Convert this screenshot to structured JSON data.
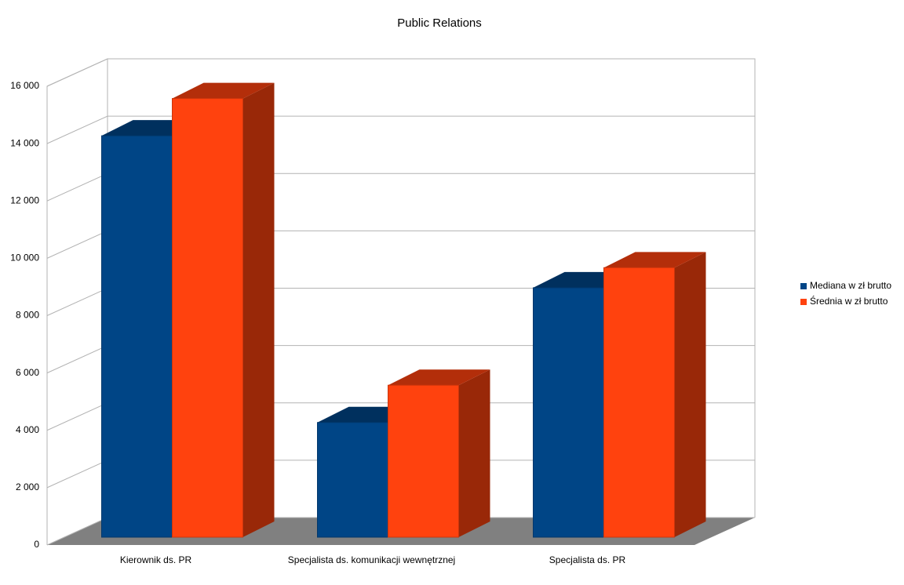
{
  "chart_data": {
    "type": "bar3d",
    "title": "Public Relations",
    "categories": [
      "Kierownik ds. PR",
      "Specjalista ds. komunikacji wewnętrznej",
      "Specjalista ds. PR"
    ],
    "series": [
      {
        "name": "Mediana w zł brutto",
        "color": "#004586",
        "values": [
          14000,
          4000,
          8700
        ]
      },
      {
        "name": "Średnia w zł brutto",
        "color": "#ff420e",
        "values": [
          15300,
          5300,
          9400
        ]
      }
    ],
    "ylim": [
      0,
      16000
    ],
    "yticks": [
      0,
      {
        "value": 2000,
        "label": "2 000"
      },
      {
        "value": 4000,
        "label": "4 000"
      },
      {
        "value": 6000,
        "label": "6 000"
      },
      {
        "value": 8000,
        "label": "8 000"
      },
      {
        "value": 10000,
        "label": "10 000"
      },
      {
        "value": 12000,
        "label": "12 000"
      },
      {
        "value": 14000,
        "label": "14 000"
      },
      {
        "value": 16000,
        "label": "16 000"
      }
    ],
    "grid": true,
    "legend": "right"
  }
}
